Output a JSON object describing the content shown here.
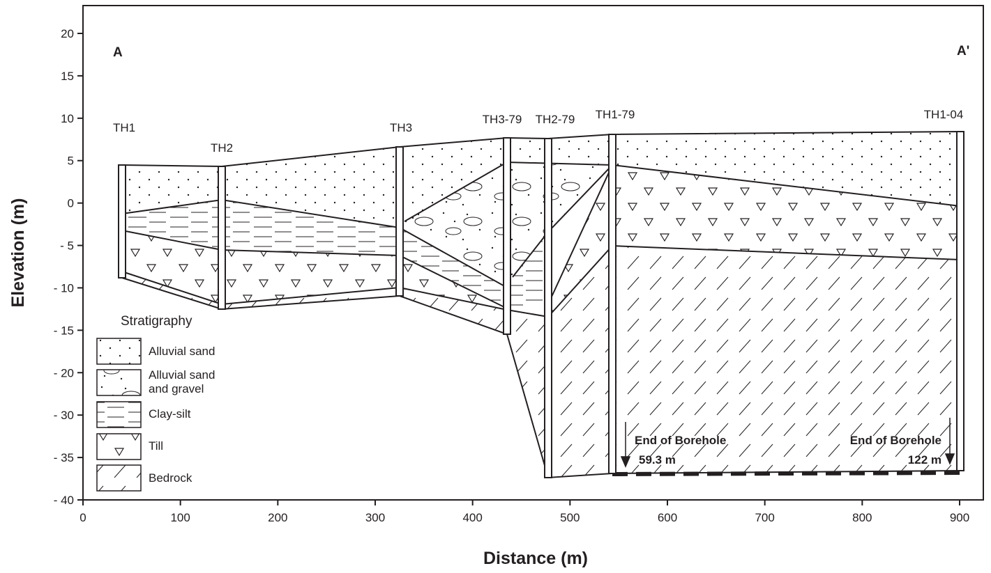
{
  "axes": {
    "x_title": "Distance (m)",
    "y_title": "Elevation (m)",
    "x_ticks": [
      "0",
      "100",
      "200",
      "300",
      "400",
      "500",
      "600",
      "700",
      "800",
      "900"
    ],
    "y_ticks": [
      "20",
      "15",
      "10",
      "5",
      "0",
      "- 5",
      "- 10",
      "- 15",
      "- 20",
      "- 30",
      "- 35",
      "- 40"
    ]
  },
  "section": {
    "start": "A",
    "end": "A'"
  },
  "boreholes": [
    {
      "label": "TH1"
    },
    {
      "label": "TH2"
    },
    {
      "label": "TH3"
    },
    {
      "label": "TH3-79"
    },
    {
      "label": "TH2-79"
    },
    {
      "label": "TH1-79"
    },
    {
      "label": "TH1-04"
    }
  ],
  "legend": {
    "title": "Stratigraphy",
    "items": [
      {
        "lines": [
          "Alluvial sand"
        ]
      },
      {
        "lines": [
          "Alluvial sand",
          "and gravel"
        ]
      },
      {
        "lines": [
          "Clay-silt"
        ]
      },
      {
        "lines": [
          "Till"
        ]
      },
      {
        "lines": [
          "Bedrock"
        ]
      }
    ]
  },
  "annotations": [
    {
      "lines": [
        "End of Borehole",
        "59.3 m"
      ]
    },
    {
      "lines": [
        "End of Borehole",
        "122 m"
      ]
    }
  ]
}
